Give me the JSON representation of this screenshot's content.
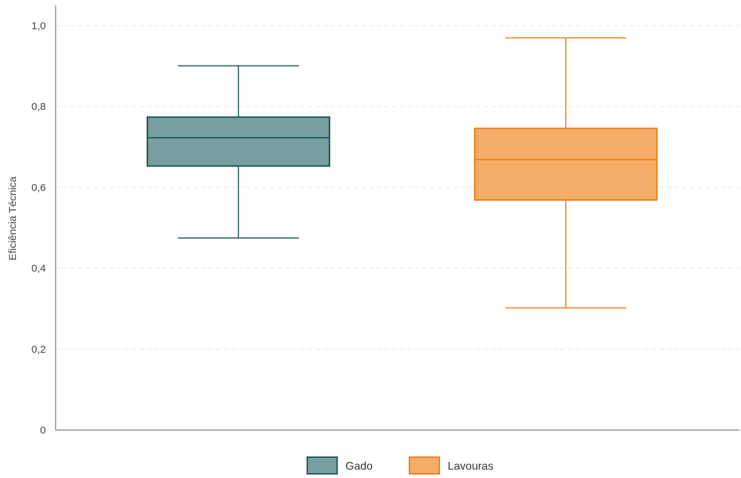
{
  "chart_data": {
    "type": "boxplot",
    "title": "",
    "xlabel": "",
    "ylabel": "Eficiência Técnica",
    "ylim": [
      0,
      1.0
    ],
    "yticks": [
      {
        "value": 0.0,
        "label": "0"
      },
      {
        "value": 0.2,
        "label": "0,2"
      },
      {
        "value": 0.4,
        "label": "0,4"
      },
      {
        "value": 0.6,
        "label": "0,6"
      },
      {
        "value": 0.8,
        "label": "0,8"
      },
      {
        "value": 1.0,
        "label": "1,0"
      }
    ],
    "grid": true,
    "legend_position": "bottom",
    "series": [
      {
        "name": "Gado",
        "whisker_low": 0.475,
        "q1": 0.653,
        "median": 0.723,
        "q3": 0.774,
        "whisker_high": 0.901,
        "fill": "#779f9f",
        "stroke": "#1f5c5c"
      },
      {
        "name": "Lavouras",
        "whisker_low": 0.302,
        "q1": 0.569,
        "median": 0.669,
        "q3": 0.746,
        "whisker_high": 0.97,
        "fill": "#f4ad68",
        "stroke": "#ee7f1d"
      }
    ]
  }
}
